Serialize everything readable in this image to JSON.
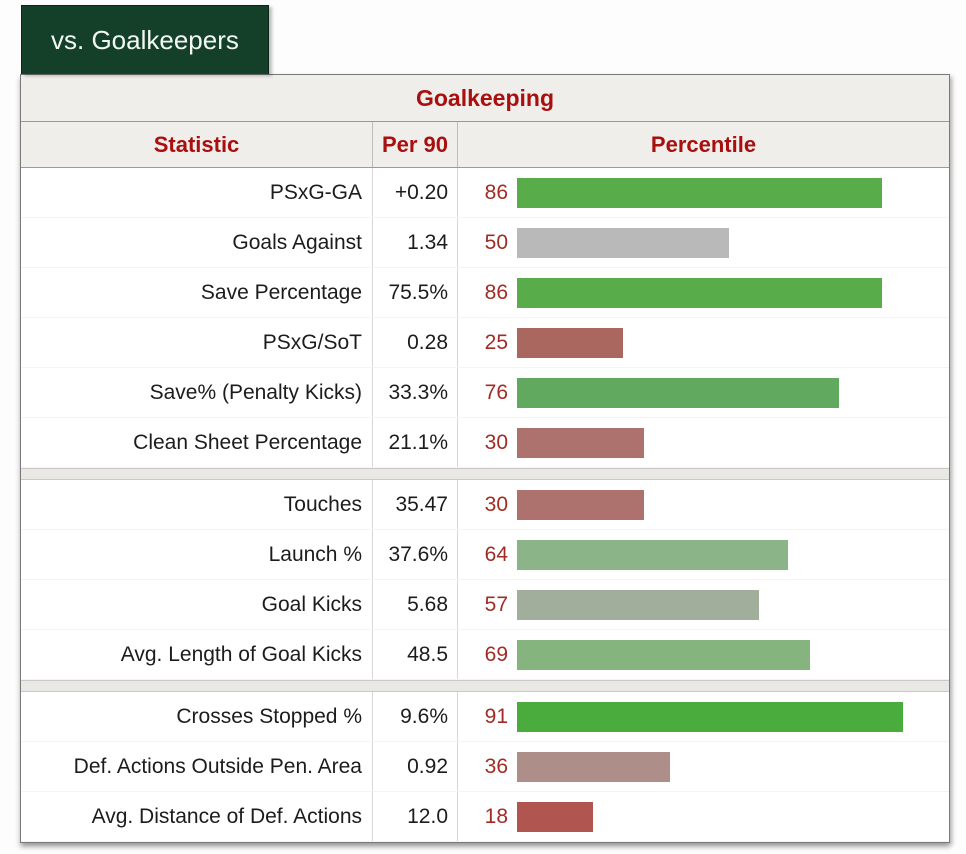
{
  "tab": {
    "label": "vs. Goalkeepers"
  },
  "theme": {
    "tab_bg": "#14402a",
    "tab_fg": "#f2f8f4",
    "accent_red": "#a80f0f",
    "percentile_number_red": "#a02c24",
    "header_bg": "#efeeeb",
    "divider_bg": "#e9e8e5",
    "gray_bar": "#b9b9b9"
  },
  "table": {
    "title": "Goalkeeping",
    "columns": {
      "stat": "Statistic",
      "per90": "Per 90",
      "percentile": "Percentile"
    },
    "sections": [
      {
        "rows": [
          {
            "stat": "PSxG-GA",
            "per90": "+0.20",
            "percentile": 86,
            "bar_color": "#58ad4a"
          },
          {
            "stat": "Goals Against",
            "per90": "1.34",
            "percentile": 50,
            "bar_color": "#b9b9b9"
          },
          {
            "stat": "Save Percentage",
            "per90": "75.5%",
            "percentile": 86,
            "bar_color": "#58ad4a"
          },
          {
            "stat": "PSxG/SoT",
            "per90": "0.28",
            "percentile": 25,
            "bar_color": "#a96760"
          },
          {
            "stat": "Save% (Penalty Kicks)",
            "per90": "33.3%",
            "percentile": 76,
            "bar_color": "#61a95e"
          },
          {
            "stat": "Clean Sheet Percentage",
            "per90": "21.1%",
            "percentile": 30,
            "bar_color": "#ad726e"
          }
        ]
      },
      {
        "rows": [
          {
            "stat": "Touches",
            "per90": "35.47",
            "percentile": 30,
            "bar_color": "#ad726e"
          },
          {
            "stat": "Launch %",
            "per90": "37.6%",
            "percentile": 64,
            "bar_color": "#8cb489"
          },
          {
            "stat": "Goal Kicks",
            "per90": "5.68",
            "percentile": 57,
            "bar_color": "#a2ae9c"
          },
          {
            "stat": "Avg. Length of Goal Kicks",
            "per90": "48.5",
            "percentile": 69,
            "bar_color": "#85b47e"
          }
        ]
      },
      {
        "rows": [
          {
            "stat": "Crosses Stopped %",
            "per90": "9.6%",
            "percentile": 91,
            "bar_color": "#4bac3e"
          },
          {
            "stat": "Def. Actions Outside Pen. Area",
            "per90": "0.92",
            "percentile": 36,
            "bar_color": "#ae8e88"
          },
          {
            "stat": "Avg. Distance of Def. Actions",
            "per90": "12.0",
            "percentile": 18,
            "bar_color": "#b15550"
          }
        ]
      }
    ]
  },
  "chart_data": {
    "type": "bar",
    "orientation": "horizontal",
    "title": "Goalkeeping",
    "subtitle": "vs. Goalkeepers",
    "xlabel": "Percentile",
    "xlim": [
      0,
      100
    ],
    "grid": false,
    "legend_position": "none",
    "categories": [
      "PSxG-GA",
      "Goals Against",
      "Save Percentage",
      "PSxG/SoT",
      "Save% (Penalty Kicks)",
      "Clean Sheet Percentage",
      "Touches",
      "Launch %",
      "Goal Kicks",
      "Avg. Length of Goal Kicks",
      "Crosses Stopped %",
      "Def. Actions Outside Pen. Area",
      "Avg. Distance of Def. Actions"
    ],
    "per90_labels": [
      "+0.20",
      "1.34",
      "75.5%",
      "0.28",
      "33.3%",
      "21.1%",
      "35.47",
      "37.6%",
      "5.68",
      "48.5",
      "9.6%",
      "0.92",
      "12.0"
    ],
    "values": [
      86,
      50,
      86,
      25,
      76,
      30,
      30,
      64,
      57,
      69,
      91,
      36,
      18
    ],
    "bar_colors": [
      "#58ad4a",
      "#b9b9b9",
      "#58ad4a",
      "#a96760",
      "#61a95e",
      "#ad726e",
      "#ad726e",
      "#8cb489",
      "#a2ae9c",
      "#85b47e",
      "#4bac3e",
      "#ae8e88",
      "#b15550"
    ],
    "section_breaks_after_index": [
      5,
      9
    ]
  }
}
